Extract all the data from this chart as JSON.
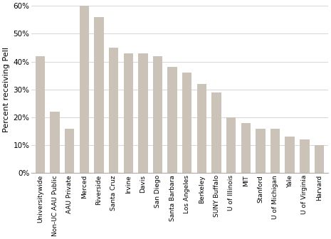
{
  "categories": [
    "Universitywide",
    "Non-UC AAU Public",
    "AAU Private",
    "Merced",
    "Riverside",
    "Santa Cruz",
    "Irvine",
    "Davis",
    "San Diego",
    "Santa Barbara",
    "Los Angeles",
    "Berkeley",
    "SUNY Buffalo",
    "U of Illinois",
    "MIT",
    "Stanford",
    "U of Michigan",
    "Yale",
    "U of Virginia",
    "Harvard"
  ],
  "values": [
    42,
    22,
    16,
    60,
    56,
    45,
    43,
    43,
    42,
    38,
    36,
    32,
    29,
    20,
    18,
    16,
    16,
    13,
    12,
    10
  ],
  "bar_color": "#cbc3b8",
  "ylabel": "Percent receiving Pell",
  "ylim": [
    0,
    60
  ],
  "ytick_labels": [
    "0%",
    "10%",
    "20%",
    "30%",
    "40%",
    "50%",
    "60%"
  ],
  "ytick_values": [
    0,
    10,
    20,
    30,
    40,
    50,
    60
  ],
  "background_color": "#ffffff",
  "grid_color": "#d0d0d0",
  "bar_width": 0.65,
  "xlabel_fontsize": 6.5,
  "ylabel_fontsize": 8,
  "ytick_fontsize": 7.5
}
